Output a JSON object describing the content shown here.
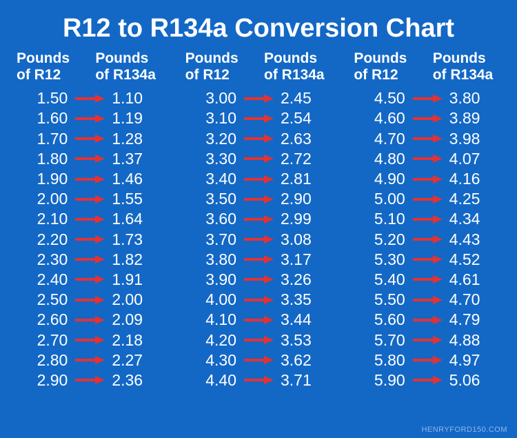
{
  "chart": {
    "type": "table",
    "title": "R12 to R134a Conversion Chart",
    "title_fontsize": 38,
    "title_color": "#ffffff",
    "background_color": "#1368c6",
    "text_color": "#ffffff",
    "value_fontsize": 23,
    "header_fontsize": 21,
    "arrow_color": "#e63131",
    "watermark": "HENRYFORD150.COM",
    "watermark_color": "#8fb6e6",
    "watermark_fontsize": 11,
    "header_left_line1": "Pounds",
    "header_left_line2": "of R12",
    "header_right_line1": "Pounds",
    "header_right_line2": "of R134a",
    "columns": [
      {
        "rows": [
          {
            "r12": "1.50",
            "r134": "1.10"
          },
          {
            "r12": "1.60",
            "r134": "1.19"
          },
          {
            "r12": "1.70",
            "r134": "1.28"
          },
          {
            "r12": "1.80",
            "r134": "1.37"
          },
          {
            "r12": "1.90",
            "r134": "1.46"
          },
          {
            "r12": "2.00",
            "r134": "1.55"
          },
          {
            "r12": "2.10",
            "r134": "1.64"
          },
          {
            "r12": "2.20",
            "r134": "1.73"
          },
          {
            "r12": "2.30",
            "r134": "1.82"
          },
          {
            "r12": "2.40",
            "r134": "1.91"
          },
          {
            "r12": "2.50",
            "r134": "2.00"
          },
          {
            "r12": "2.60",
            "r134": "2.09"
          },
          {
            "r12": "2.70",
            "r134": "2.18"
          },
          {
            "r12": "2.80",
            "r134": "2.27"
          },
          {
            "r12": "2.90",
            "r134": "2.36"
          }
        ]
      },
      {
        "rows": [
          {
            "r12": "3.00",
            "r134": "2.45"
          },
          {
            "r12": "3.10",
            "r134": "2.54"
          },
          {
            "r12": "3.20",
            "r134": "2.63"
          },
          {
            "r12": "3.30",
            "r134": "2.72"
          },
          {
            "r12": "3.40",
            "r134": "2.81"
          },
          {
            "r12": "3.50",
            "r134": "2.90"
          },
          {
            "r12": "3.60",
            "r134": "2.99"
          },
          {
            "r12": "3.70",
            "r134": "3.08"
          },
          {
            "r12": "3.80",
            "r134": "3.17"
          },
          {
            "r12": "3.90",
            "r134": "3.26"
          },
          {
            "r12": "4.00",
            "r134": "3.35"
          },
          {
            "r12": "4.10",
            "r134": "3.44"
          },
          {
            "r12": "4.20",
            "r134": "3.53"
          },
          {
            "r12": "4.30",
            "r134": "3.62"
          },
          {
            "r12": "4.40",
            "r134": "3.71"
          }
        ]
      },
      {
        "rows": [
          {
            "r12": "4.50",
            "r134": "3.80"
          },
          {
            "r12": "4.60",
            "r134": "3.89"
          },
          {
            "r12": "4.70",
            "r134": "3.98"
          },
          {
            "r12": "4.80",
            "r134": "4.07"
          },
          {
            "r12": "4.90",
            "r134": "4.16"
          },
          {
            "r12": "5.00",
            "r134": "4.25"
          },
          {
            "r12": "5.10",
            "r134": "4.34"
          },
          {
            "r12": "5.20",
            "r134": "4.43"
          },
          {
            "r12": "5.30",
            "r134": "4.52"
          },
          {
            "r12": "5.40",
            "r134": "4.61"
          },
          {
            "r12": "5.50",
            "r134": "4.70"
          },
          {
            "r12": "5.60",
            "r134": "4.79"
          },
          {
            "r12": "5.70",
            "r134": "4.88"
          },
          {
            "r12": "5.80",
            "r134": "4.97"
          },
          {
            "r12": "5.90",
            "r134": "5.06"
          }
        ]
      }
    ]
  }
}
